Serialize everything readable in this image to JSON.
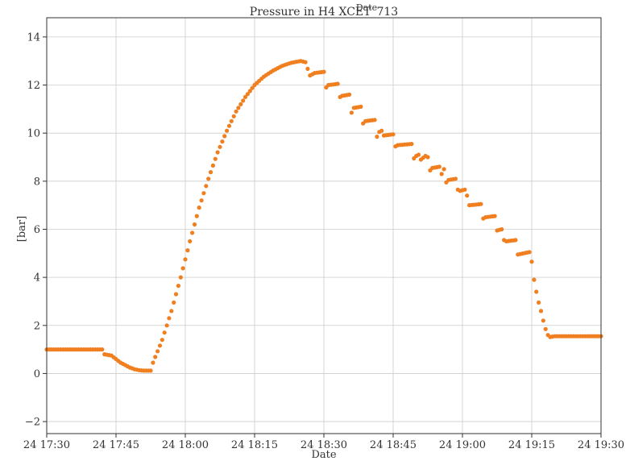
{
  "chart_data": {
    "type": "scatter",
    "title": "Pressure in H4 XCET_713",
    "title_overlay": "Date",
    "xlabel": "Date",
    "ylabel": "[bar]",
    "x_ticks": [
      "24 17:30",
      "24 17:45",
      "24 18:00",
      "24 18:15",
      "24 18:30",
      "24 18:45",
      "24 19:00",
      "24 19:15",
      "24 19:30"
    ],
    "x_tick_minutes": [
      0,
      15,
      30,
      45,
      60,
      75,
      90,
      105,
      120
    ],
    "y_ticks": [
      -2,
      0,
      2,
      4,
      6,
      8,
      10,
      12,
      14
    ],
    "y_tick_labels": [
      "−2",
      "0",
      "2",
      "4",
      "6",
      "8",
      "10",
      "12",
      "14"
    ],
    "xlim_minutes": [
      0,
      120
    ],
    "ylim": [
      -2.5,
      14.8
    ],
    "grid": true,
    "marker_color": "#f07f20",
    "series": [
      {
        "values": [
          [
            0,
            1.0
          ],
          [
            12,
            1.0
          ],
          [
            12.5,
            0.8
          ],
          [
            14,
            0.75
          ],
          [
            15,
            0.6
          ],
          [
            16,
            0.45
          ],
          [
            17,
            0.35
          ],
          [
            18,
            0.25
          ],
          [
            19,
            0.18
          ],
          [
            20,
            0.14
          ],
          [
            21,
            0.12
          ],
          [
            22,
            0.12
          ],
          [
            22.5,
            0.12
          ],
          [
            23,
            0.45
          ],
          [
            25,
            1.4
          ],
          [
            27,
            2.6
          ],
          [
            29,
            4.0
          ],
          [
            31,
            5.5
          ],
          [
            33,
            6.9
          ],
          [
            35,
            8.1
          ],
          [
            37,
            9.2
          ],
          [
            39,
            10.1
          ],
          [
            41,
            10.9
          ],
          [
            43,
            11.5
          ],
          [
            45,
            12.0
          ],
          [
            47,
            12.35
          ],
          [
            49,
            12.6
          ],
          [
            51,
            12.8
          ],
          [
            53,
            12.93
          ],
          [
            55,
            13.0
          ],
          [
            56,
            12.95
          ],
          [
            57,
            12.4
          ],
          [
            58,
            12.5
          ],
          [
            60,
            12.55
          ],
          [
            60.5,
            11.9
          ],
          [
            61,
            12.0
          ],
          [
            63,
            12.05
          ],
          [
            63.5,
            11.5
          ],
          [
            64,
            11.55
          ],
          [
            65.5,
            11.6
          ],
          [
            66,
            10.85
          ],
          [
            66.5,
            11.05
          ],
          [
            68,
            11.1
          ],
          [
            68.5,
            10.4
          ],
          [
            69,
            10.5
          ],
          [
            71,
            10.55
          ],
          [
            71.5,
            9.85
          ],
          [
            72,
            10.05
          ],
          [
            72.5,
            10.1
          ],
          [
            73,
            9.9
          ],
          [
            75,
            9.95
          ],
          [
            75.5,
            9.45
          ],
          [
            76,
            9.5
          ],
          [
            79,
            9.55
          ],
          [
            79.5,
            8.95
          ],
          [
            80,
            9.05
          ],
          [
            80.5,
            9.1
          ],
          [
            81,
            8.9
          ],
          [
            82,
            9.05
          ],
          [
            82.5,
            9.0
          ],
          [
            83,
            8.45
          ],
          [
            83.5,
            8.55
          ],
          [
            85,
            8.6
          ],
          [
            85.5,
            8.3
          ],
          [
            86,
            8.5
          ],
          [
            86.5,
            7.95
          ],
          [
            87,
            8.05
          ],
          [
            88.5,
            8.1
          ],
          [
            89,
            7.65
          ],
          [
            89.5,
            7.6
          ],
          [
            90.5,
            7.65
          ],
          [
            91,
            7.4
          ],
          [
            91.5,
            7.0
          ],
          [
            94,
            7.05
          ],
          [
            94.5,
            6.45
          ],
          [
            95,
            6.5
          ],
          [
            97,
            6.55
          ],
          [
            97.5,
            5.95
          ],
          [
            98.5,
            6.0
          ],
          [
            99,
            5.55
          ],
          [
            99.5,
            5.5
          ],
          [
            101.5,
            5.55
          ],
          [
            102,
            4.95
          ],
          [
            104.5,
            5.05
          ],
          [
            105,
            4.65
          ],
          [
            105.5,
            3.9
          ],
          [
            106,
            3.4
          ],
          [
            106.5,
            2.95
          ],
          [
            107,
            2.6
          ],
          [
            107.5,
            2.2
          ],
          [
            108,
            1.85
          ],
          [
            108.5,
            1.6
          ],
          [
            109,
            1.52
          ],
          [
            110,
            1.55
          ],
          [
            120,
            1.55
          ]
        ]
      }
    ]
  }
}
